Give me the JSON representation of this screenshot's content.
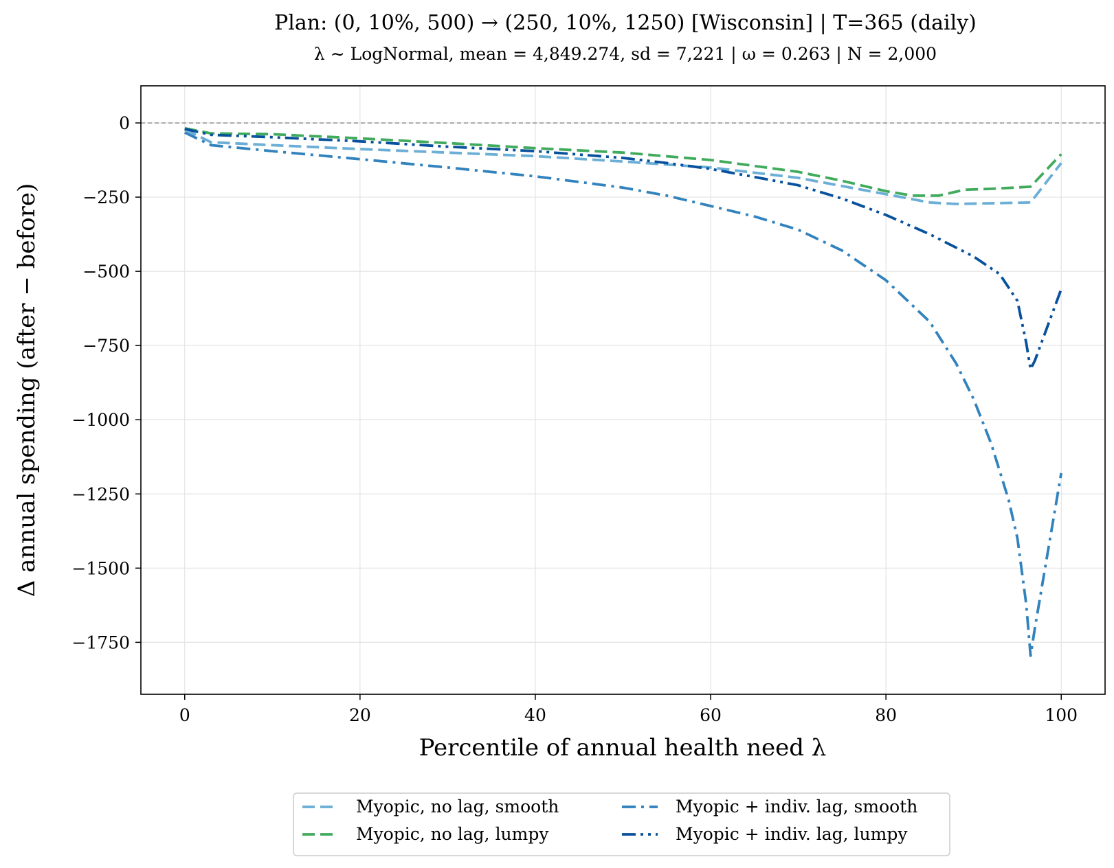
{
  "chart_data": {
    "type": "line",
    "title": "Plan: (0, 10%, 500) → (250, 10%, 1250)  [Wisconsin]  |  T=365 (daily)",
    "subtitle": "λ ∼ LogNormal, mean = 4,849.274, sd = 7,221  |  ω = 0.263  |  N = 2,000",
    "xlabel": "Percentile of annual health need λ",
    "ylabel": "Δ annual spending (after − before)",
    "xlim": [
      -5,
      105
    ],
    "ylim": [
      -1925,
      125
    ],
    "xticks": [
      0,
      20,
      40,
      60,
      80,
      100
    ],
    "xtick_labels": [
      "0",
      "20",
      "40",
      "60",
      "80",
      "100"
    ],
    "yticks": [
      0,
      -250,
      -500,
      -750,
      -1000,
      -1250,
      -1500,
      -1750
    ],
    "ytick_labels": [
      "0",
      "−250",
      "−500",
      "−750",
      "−1000",
      "−1250",
      "−1500",
      "−1750"
    ],
    "grid": true,
    "reference_line_y": 0,
    "legend_position": "bottom-center",
    "series": [
      {
        "name": "Myopic, no lag, smooth",
        "color": "#6baed6",
        "dash": "dashed",
        "x": [
          0,
          3,
          10,
          20,
          30,
          40,
          50,
          60,
          70,
          80,
          85,
          88,
          96.5,
          100
        ],
        "y": [
          -22,
          -65,
          -75,
          -88,
          -100,
          -112,
          -130,
          -150,
          -185,
          -240,
          -268,
          -273,
          -268,
          -135
        ]
      },
      {
        "name": "Myopic, no lag, lumpy",
        "color": "#41ab5d",
        "dash": "dashed",
        "x": [
          0,
          3,
          10,
          20,
          30,
          40,
          50,
          60,
          70,
          75,
          80,
          83,
          86,
          89,
          92,
          96.5,
          100
        ],
        "y": [
          -18,
          -35,
          -38,
          -52,
          -68,
          -85,
          -100,
          -125,
          -165,
          -195,
          -230,
          -245,
          -245,
          -225,
          -222,
          -215,
          -105
        ]
      },
      {
        "name": "Myopic + indiv. lag, smooth",
        "color": "#3182bd",
        "dash": "dashdot",
        "x": [
          0,
          3,
          10,
          20,
          30,
          40,
          50,
          55,
          60,
          65,
          70,
          75,
          80,
          85,
          88,
          90,
          92,
          94,
          95,
          96,
          96.5,
          97,
          100
        ],
        "y": [
          -32,
          -75,
          -95,
          -122,
          -150,
          -180,
          -218,
          -245,
          -280,
          -315,
          -360,
          -430,
          -530,
          -670,
          -810,
          -930,
          -1080,
          -1270,
          -1400,
          -1620,
          -1795,
          -1700,
          -1180
        ]
      },
      {
        "name": "Myopic + indiv. lag, lumpy",
        "color": "#08519c",
        "dash": "dashdotdot",
        "x": [
          0,
          3,
          10,
          20,
          30,
          40,
          50,
          55,
          60,
          65,
          70,
          75,
          80,
          85,
          90,
          93,
          95,
          96,
          96.5,
          97,
          100
        ],
        "y": [
          -20,
          -40,
          -48,
          -62,
          -80,
          -95,
          -118,
          -135,
          -155,
          -182,
          -210,
          -255,
          -310,
          -375,
          -450,
          -510,
          -600,
          -740,
          -830,
          -800,
          -560
        ]
      }
    ]
  }
}
